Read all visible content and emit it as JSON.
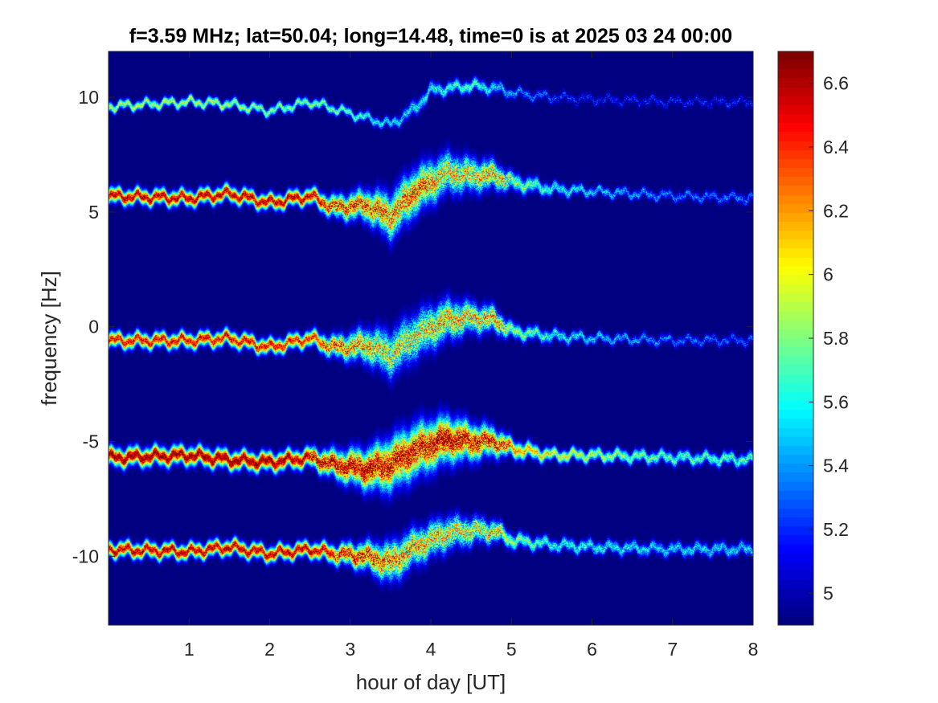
{
  "chart_data": {
    "type": "heatmap",
    "title": "f=3.59 MHz;  lat=50.04; long=14.48, time=0 is at 2025 03 24 00:00",
    "xlabel": "hour of day [UT]",
    "ylabel": "frequency [Hz]",
    "xlim": [
      0,
      8
    ],
    "ylim": [
      -13,
      12
    ],
    "x_ticks": [
      1,
      2,
      3,
      4,
      5,
      6,
      7,
      8
    ],
    "y_ticks": [
      -10,
      -5,
      0,
      5,
      10
    ],
    "colorbar": {
      "colormap": "jet",
      "clim": [
        4.9,
        6.7
      ],
      "ticks": [
        5,
        5.2,
        5.4,
        5.6,
        5.8,
        6,
        6.2,
        6.4,
        6.6
      ]
    },
    "background_value": 4.9,
    "grid": false,
    "traces": [
      {
        "label": "+10 Hz trace",
        "x": [
          0,
          1,
          1.5,
          2,
          2.5,
          3,
          3.3,
          3.5,
          3.8,
          4.0,
          4.5,
          4.8,
          5.0,
          5.5,
          6,
          7,
          8
        ],
        "y": [
          9.6,
          9.8,
          9.7,
          9.4,
          9.8,
          9.3,
          9.0,
          8.8,
          9.5,
          10.3,
          10.5,
          10.4,
          10.2,
          10.0,
          9.9,
          9.8,
          9.8
        ],
        "peak": [
          5.9,
          5.9,
          5.9,
          5.8,
          5.8,
          5.7,
          5.6,
          5.5,
          5.5,
          5.6,
          5.7,
          5.5,
          5.4,
          5.2,
          5.1,
          5.1,
          5.1
        ],
        "width": [
          0.3,
          0.3,
          0.3,
          0.3,
          0.3,
          0.3,
          0.3,
          0.3,
          0.5,
          0.4,
          0.4,
          0.4,
          0.3,
          0.3,
          0.3,
          0.3,
          0.3
        ]
      },
      {
        "label": "+5.6 Hz trace",
        "x": [
          0,
          1,
          1.5,
          2,
          2.5,
          2.8,
          3.2,
          3.5,
          3.8,
          4.2,
          4.5,
          4.8,
          5.0,
          5.5,
          6,
          7,
          8
        ],
        "y": [
          5.7,
          5.6,
          5.8,
          5.4,
          5.7,
          5.2,
          5.3,
          4.8,
          5.9,
          6.7,
          6.6,
          6.6,
          6.3,
          6.0,
          5.9,
          5.7,
          5.6
        ],
        "peak": [
          6.6,
          6.6,
          6.6,
          6.6,
          6.6,
          6.4,
          6.3,
          6.2,
          6.3,
          6.0,
          6.0,
          6.1,
          5.8,
          5.6,
          5.5,
          5.3,
          5.3
        ],
        "width": [
          0.5,
          0.5,
          0.5,
          0.5,
          0.5,
          0.7,
          1.0,
          1.5,
          1.5,
          1.3,
          1.1,
          0.9,
          0.6,
          0.4,
          0.3,
          0.3,
          0.3
        ]
      },
      {
        "label": "0 Hz trace",
        "x": [
          0,
          1,
          1.5,
          2,
          2.5,
          2.8,
          3.2,
          3.5,
          3.8,
          4.2,
          4.5,
          4.8,
          5.0,
          5.5,
          6,
          7,
          8
        ],
        "y": [
          -0.6,
          -0.6,
          -0.5,
          -0.9,
          -0.5,
          -0.9,
          -0.8,
          -1.2,
          -0.4,
          0.3,
          0.4,
          0.3,
          -0.2,
          -0.4,
          -0.5,
          -0.6,
          -0.6
        ],
        "peak": [
          6.5,
          6.5,
          6.5,
          6.5,
          6.4,
          6.3,
          6.1,
          5.9,
          5.9,
          6.1,
          6.0,
          6.1,
          5.8,
          5.6,
          5.5,
          5.3,
          5.2
        ],
        "width": [
          0.5,
          0.5,
          0.5,
          0.5,
          0.5,
          0.7,
          1.1,
          1.5,
          1.5,
          1.3,
          1.0,
          0.8,
          0.5,
          0.4,
          0.3,
          0.3,
          0.3
        ]
      },
      {
        "label": "-5.7 Hz trace",
        "x": [
          0,
          1,
          1.5,
          2,
          2.5,
          2.8,
          3.2,
          3.5,
          3.8,
          4.2,
          4.5,
          4.8,
          5.0,
          5.5,
          6,
          7,
          8
        ],
        "y": [
          -5.7,
          -5.6,
          -5.8,
          -5.9,
          -5.7,
          -6.0,
          -6.2,
          -6.0,
          -5.4,
          -4.9,
          -5.0,
          -5.0,
          -5.3,
          -5.6,
          -5.6,
          -5.7,
          -5.8
        ],
        "peak": [
          6.7,
          6.7,
          6.7,
          6.7,
          6.6,
          6.6,
          6.6,
          6.5,
          6.5,
          6.6,
          6.5,
          6.4,
          6.2,
          6.0,
          5.9,
          5.7,
          5.7
        ],
        "width": [
          0.6,
          0.6,
          0.6,
          0.6,
          0.6,
          0.9,
          1.3,
          1.7,
          1.7,
          1.5,
          1.2,
          0.9,
          0.6,
          0.4,
          0.4,
          0.4,
          0.4
        ]
      },
      {
        "label": "-9.7 Hz trace",
        "x": [
          0,
          1,
          1.5,
          2,
          2.5,
          2.8,
          3.2,
          3.5,
          3.8,
          4.2,
          4.5,
          4.8,
          5.0,
          5.5,
          6,
          7,
          8
        ],
        "y": [
          -9.7,
          -9.8,
          -9.6,
          -9.9,
          -9.7,
          -9.9,
          -10.0,
          -10.3,
          -9.6,
          -9.0,
          -8.9,
          -8.9,
          -9.3,
          -9.5,
          -9.6,
          -9.7,
          -9.7
        ],
        "peak": [
          6.6,
          6.6,
          6.6,
          6.6,
          6.6,
          6.5,
          6.4,
          6.2,
          6.1,
          6.0,
          5.9,
          6.0,
          5.8,
          5.6,
          5.6,
          5.5,
          5.5
        ],
        "width": [
          0.5,
          0.5,
          0.5,
          0.5,
          0.5,
          0.6,
          0.9,
          1.3,
          1.2,
          1.1,
          0.9,
          0.7,
          0.5,
          0.4,
          0.4,
          0.4,
          0.4
        ]
      }
    ]
  }
}
